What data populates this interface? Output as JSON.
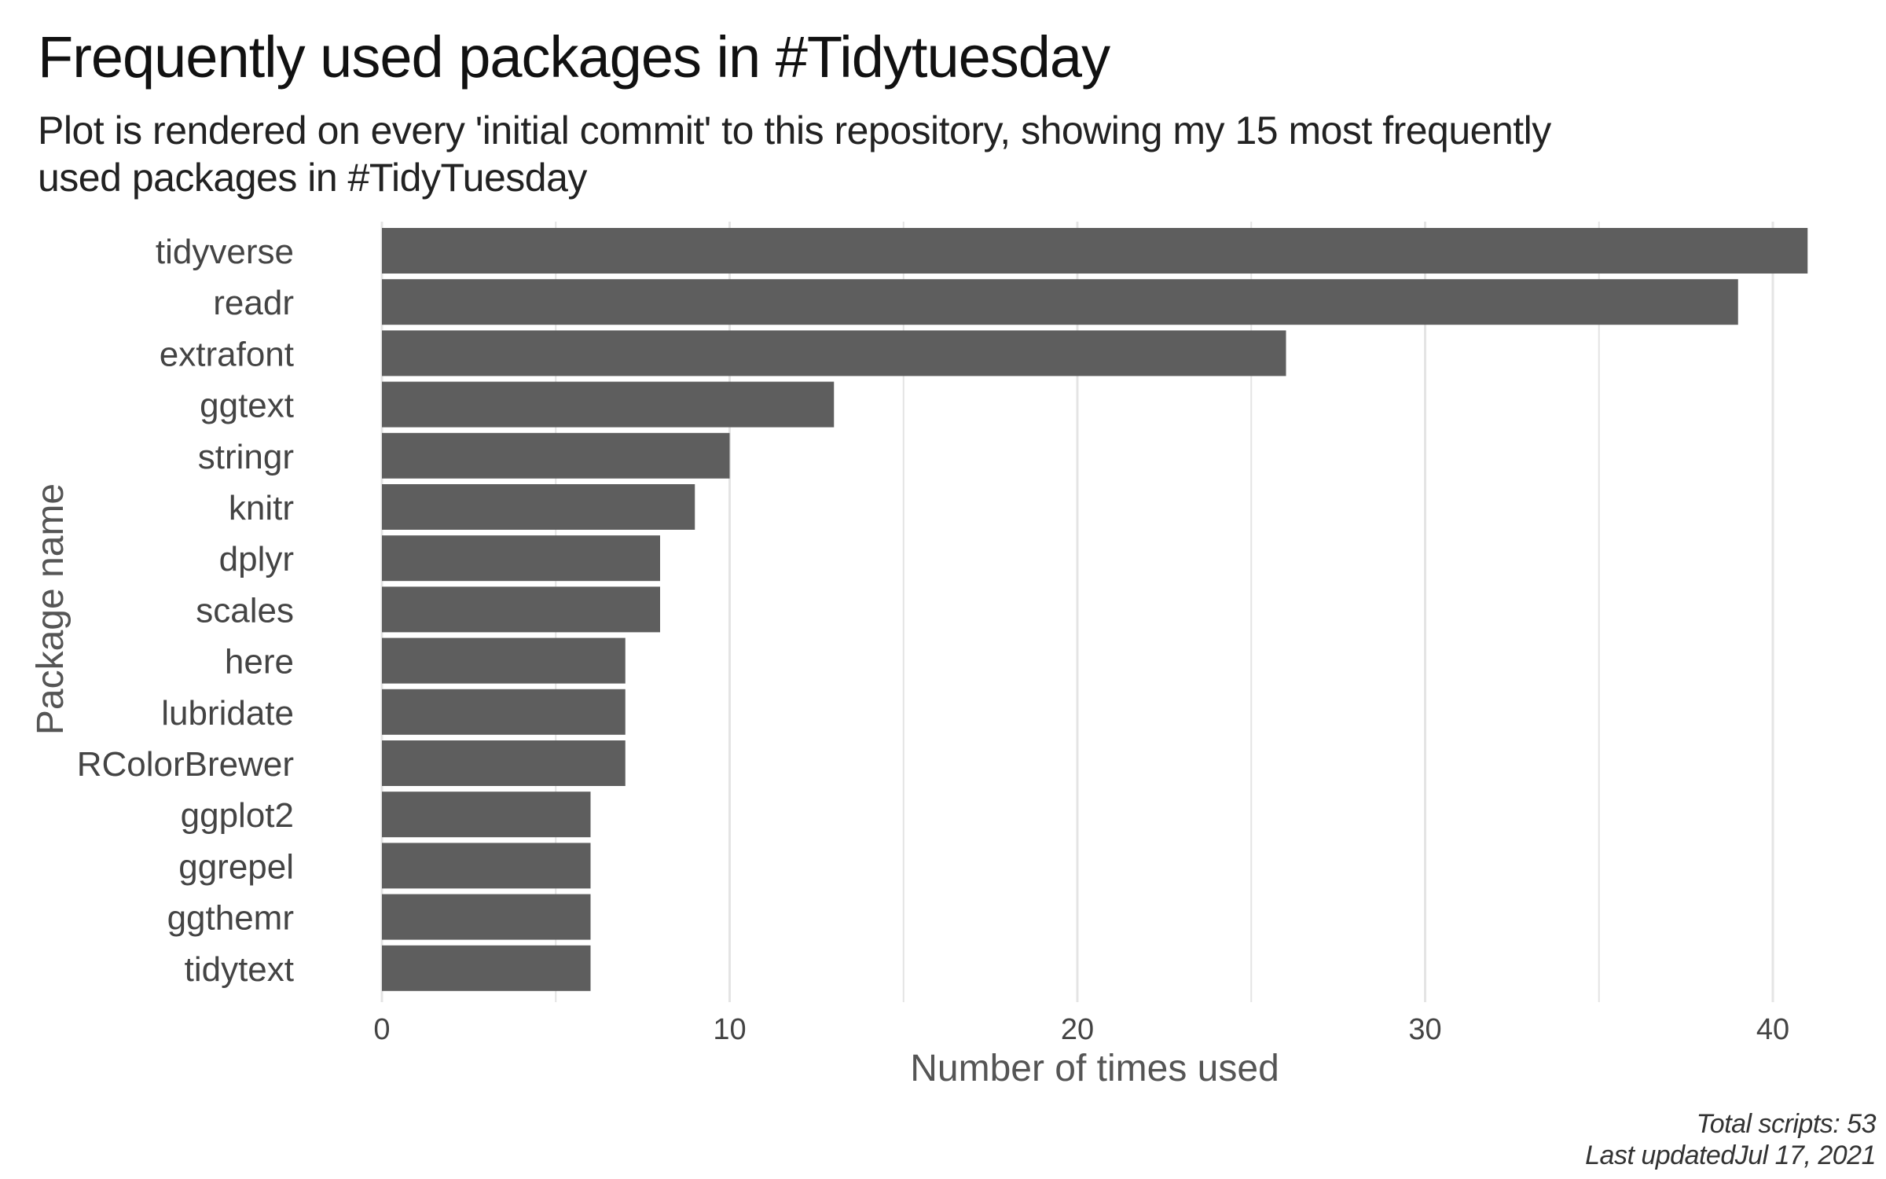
{
  "header": {
    "title": "Frequently used packages in #Tidytuesday",
    "subtitle": "Plot is rendered on every 'initial commit' to this repository, showing my 15 most frequently used packages in #TidyTuesday"
  },
  "caption": {
    "line1": "Total scripts: 53",
    "line2": "Last updatedJul 17, 2021"
  },
  "colors": {
    "bar": "#5e5e5e",
    "grid": "#e4e4e4",
    "text": "#444444"
  },
  "chart_data": {
    "type": "bar",
    "orientation": "horizontal",
    "title": "Frequently used packages in #Tidytuesday",
    "xlabel": "Number of times used",
    "ylabel": "Package name",
    "categories": [
      "tidyverse",
      "readr",
      "extrafont",
      "ggtext",
      "stringr",
      "knitr",
      "dplyr",
      "scales",
      "here",
      "lubridate",
      "RColorBrewer",
      "ggplot2",
      "ggrepel",
      "ggthemr",
      "tidytext"
    ],
    "values": [
      41,
      39,
      26,
      13,
      10,
      9,
      8,
      8,
      7,
      7,
      7,
      6,
      6,
      6,
      6
    ],
    "xticks": [
      0,
      10,
      20,
      30,
      40
    ],
    "xlim": [
      0,
      41
    ],
    "grid": true,
    "legend": "none"
  }
}
